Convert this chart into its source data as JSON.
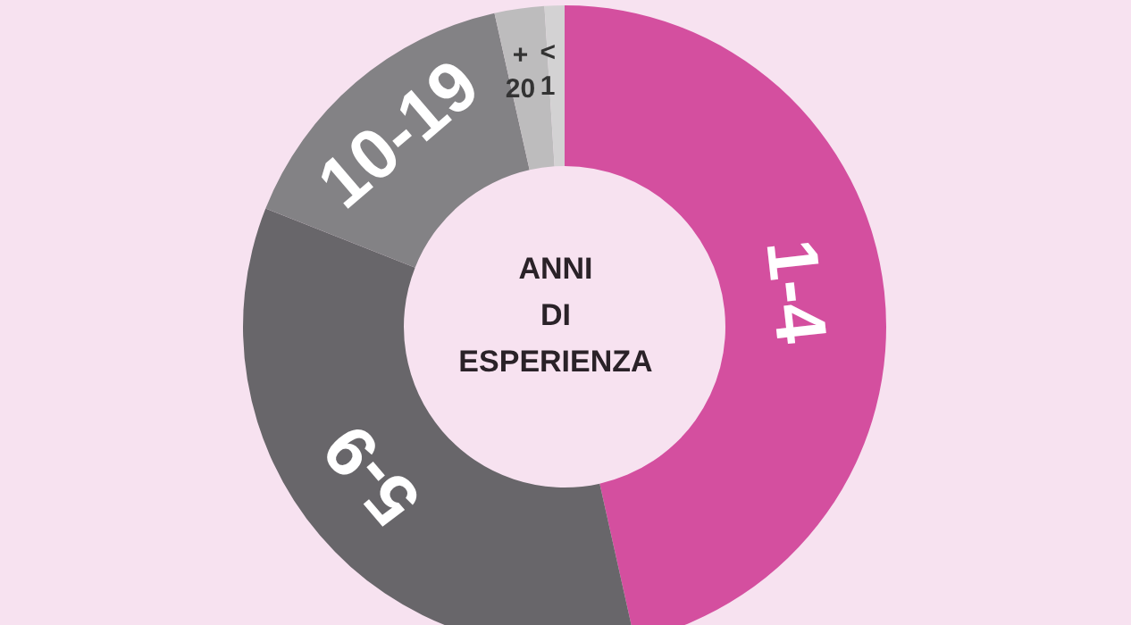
{
  "chart_data": {
    "type": "donut",
    "title": "ANNI DI ESPERIENZA",
    "categories": [
      "1-4",
      "5-9",
      "10-19",
      "+ 20",
      "< 1"
    ],
    "values": [
      46.5,
      34.5,
      15.5,
      2.5,
      1
    ],
    "colors": [
      "#d44f9f",
      "#68666a",
      "#838285",
      "#bdbcbd",
      "#d3d2d3"
    ],
    "legend": false
  }
}
